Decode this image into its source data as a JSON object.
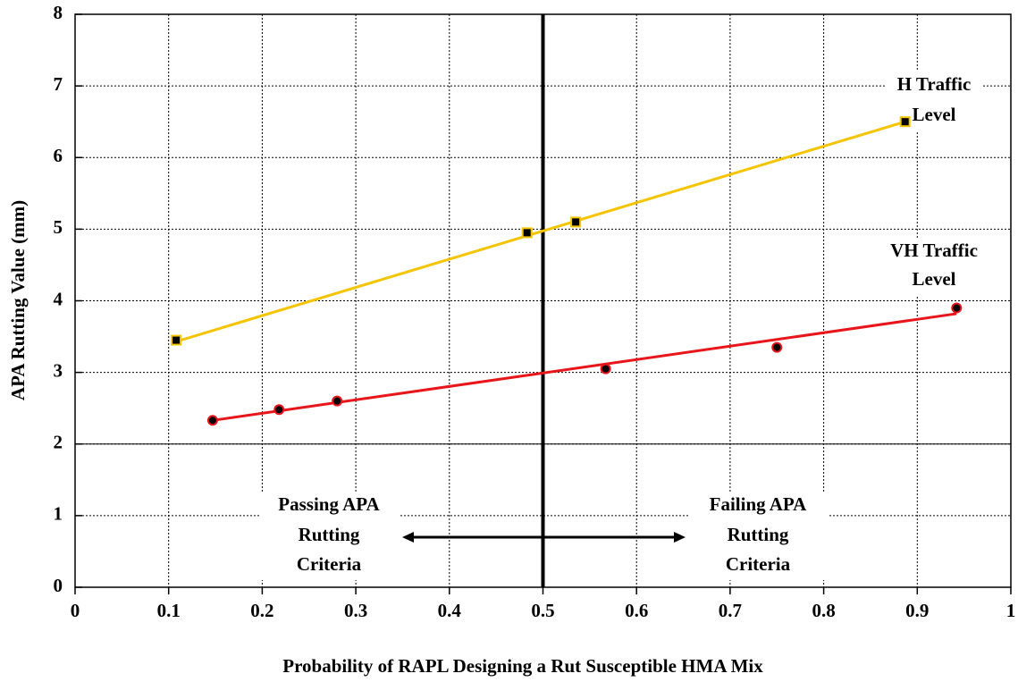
{
  "chart_data": {
    "type": "scatter",
    "x_label": "Probability of RAPL Designing a Rut Susceptible HMA Mix",
    "y_label": "APA Rutting Value (mm)",
    "xlim": [
      0,
      1
    ],
    "xticks": [
      0,
      0.1,
      0.2,
      0.3,
      0.4,
      0.5,
      0.6,
      0.7,
      0.8,
      0.9,
      1
    ],
    "ylim": [
      0,
      8
    ],
    "yticks": [
      0,
      1,
      2,
      3,
      4,
      5,
      6,
      7,
      8
    ],
    "grid": true,
    "threshold_x": 0.5,
    "threshold_y": 2,
    "series": [
      {
        "color": "#f5c400",
        "marker": "square",
        "x": [
          0.108,
          0.483,
          0.535,
          0.887
        ],
        "values": [
          3.45,
          4.95,
          5.1,
          6.5
        ],
        "trend_x": [
          0.108,
          0.887
        ],
        "trend_values": [
          3.43,
          6.5
        ]
      },
      {
        "color": "#e8161b",
        "marker": "circle",
        "x": [
          0.147,
          0.218,
          0.28,
          0.567,
          0.75,
          0.942
        ],
        "values": [
          2.33,
          2.48,
          2.6,
          3.05,
          3.35,
          3.9
        ],
        "trend_x": [
          0.147,
          0.942
        ],
        "trend_values": [
          2.33,
          3.82
        ]
      }
    ],
    "annotations": [
      {
        "lines": [
          "H Traffic",
          "Level"
        ]
      },
      {
        "lines": [
          "VH Traffic",
          "Level"
        ]
      },
      {
        "lines": [
          "Passing APA",
          "Rutting",
          "Criteria"
        ]
      },
      {
        "lines": [
          "Failing APA",
          "Rutting",
          "Criteria"
        ]
      }
    ]
  }
}
